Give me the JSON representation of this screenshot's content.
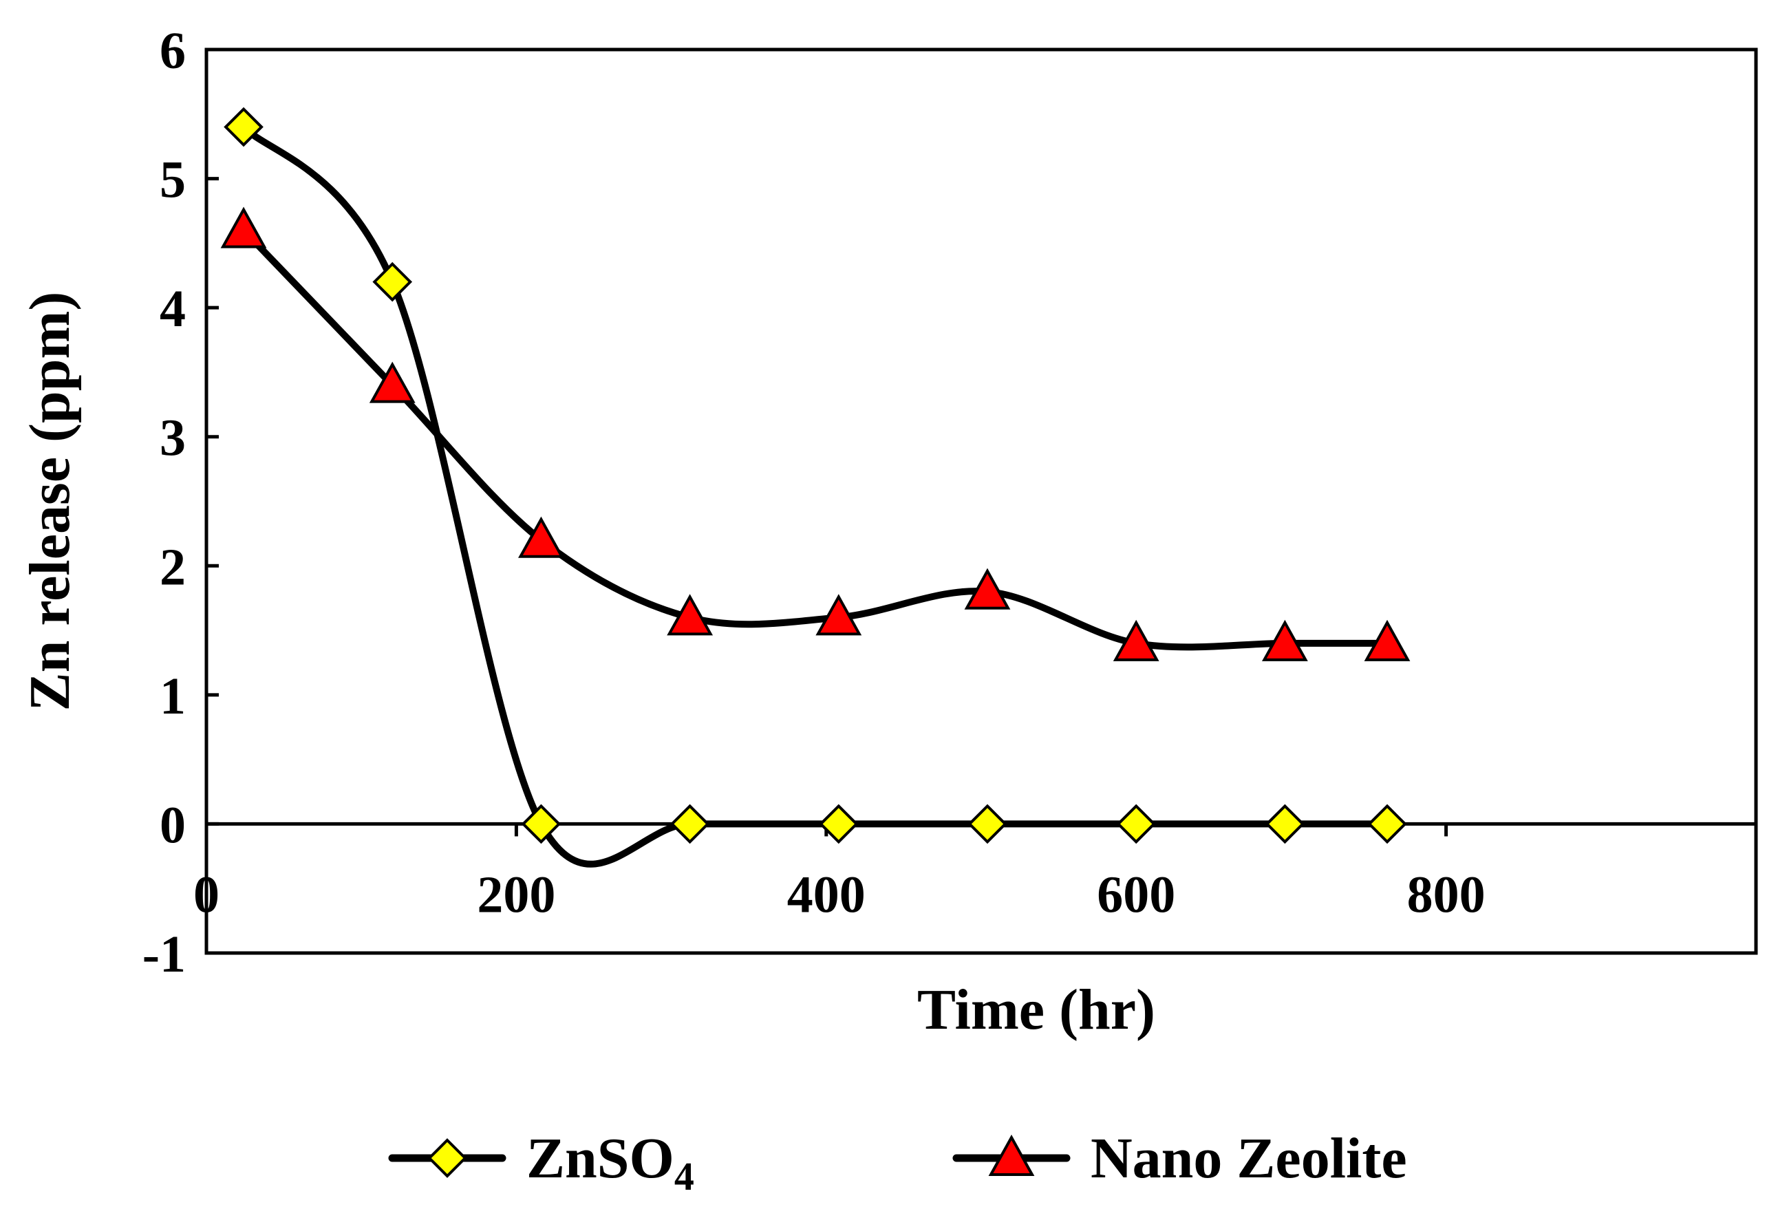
{
  "chart_data": {
    "type": "line",
    "title": "",
    "xlabel": "Time (hr)",
    "ylabel": "Zn release (ppm)",
    "xlim": [
      0,
      1000
    ],
    "ylim": [
      -1,
      6
    ],
    "xticks": [
      0,
      200,
      400,
      600,
      800
    ],
    "xtick_labels": [
      "0",
      "200",
      "400",
      "600",
      "800"
    ],
    "yticks": [
      -1,
      0,
      1,
      2,
      3,
      4,
      5,
      6
    ],
    "ytick_labels": [
      "-1",
      "0",
      "1",
      "2",
      "3",
      "4",
      "5",
      "6"
    ],
    "grid": false,
    "legend_position": "bottom",
    "series": [
      {
        "name": "ZnSO4",
        "label_main": "ZnSO",
        "label_sub": "4",
        "marker": "diamond",
        "marker_color": "#ffff00",
        "line_color": "#000000",
        "x": [
          24,
          120,
          216,
          312,
          408,
          504,
          600,
          696,
          762
        ],
        "y": [
          5.4,
          4.2,
          0,
          0,
          0,
          0,
          0,
          0,
          0
        ]
      },
      {
        "name": "Nano Zeolite",
        "label_main": "Nano Zeolite",
        "label_sub": "",
        "marker": "triangle",
        "marker_color": "#ff0000",
        "line_color": "#000000",
        "x": [
          24,
          120,
          216,
          312,
          408,
          504,
          600,
          696,
          762
        ],
        "y": [
          4.6,
          3.4,
          2.2,
          1.6,
          1.6,
          1.8,
          1.4,
          1.4,
          1.4
        ]
      }
    ]
  }
}
